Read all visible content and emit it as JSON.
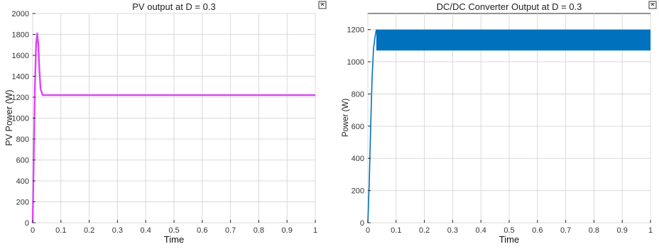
{
  "window": {
    "pin_icon_label": "⊼"
  },
  "chart_data": [
    {
      "type": "line",
      "title": "PV output at D = 0.3",
      "xlabel": "Time",
      "ylabel": "PV Power (W)",
      "xlim": [
        0,
        1
      ],
      "ylim": [
        0,
        2000
      ],
      "grid": true,
      "x_ticks": [
        0,
        0.1,
        0.2,
        0.3,
        0.4,
        0.5,
        0.6,
        0.7,
        0.8,
        0.9,
        1
      ],
      "x_tick_labels": [
        "0",
        "0.1",
        "0.2",
        "0.3",
        "0.4",
        "0.5",
        "0.6",
        "0.7",
        "0.8",
        "0.9",
        "1"
      ],
      "y_ticks": [
        0,
        200,
        400,
        600,
        800,
        1000,
        1200,
        1400,
        1600,
        1800,
        2000
      ],
      "y_tick_labels": [
        "0",
        "200",
        "400",
        "600",
        "800",
        "1000",
        "1200",
        "1400",
        "1600",
        "1800",
        "2000"
      ],
      "series": [
        {
          "color": "#e040fb",
          "x": [
            0,
            0.004,
            0.008,
            0.012,
            0.016,
            0.02,
            0.024,
            0.028,
            0.035,
            0.05,
            0.1,
            0.3,
            0.5,
            0.7,
            0.9,
            1.0
          ],
          "y": [
            0,
            650,
            1300,
            1700,
            1810,
            1700,
            1450,
            1280,
            1220,
            1220,
            1220,
            1220,
            1220,
            1220,
            1220,
            1220
          ]
        }
      ]
    },
    {
      "type": "line",
      "title": "DC/DC Converter Output at D = 0.3",
      "xlabel": "Time",
      "ylabel": "Power (W)",
      "xlim": [
        0,
        1
      ],
      "ylim": [
        0,
        1300
      ],
      "grid": true,
      "x_ticks": [
        0,
        0.1,
        0.2,
        0.3,
        0.4,
        0.5,
        0.6,
        0.7,
        0.8,
        0.9,
        1
      ],
      "x_tick_labels": [
        "0",
        "0.1",
        "0.2",
        "0.3",
        "0.4",
        "0.5",
        "0.6",
        "0.7",
        "0.8",
        "0.9",
        "1"
      ],
      "y_ticks": [
        0,
        200,
        400,
        600,
        800,
        1000,
        1200
      ],
      "y_tick_labels": [
        "0",
        "200",
        "400",
        "600",
        "800",
        "1000",
        "1200"
      ],
      "series": [
        {
          "color": "#0072bd",
          "oscillation_band": {
            "x_start": 0.03,
            "x_end": 1.0,
            "y_min": 1070,
            "y_max": 1200
          },
          "x": [
            0,
            0.005,
            0.01,
            0.015,
            0.02,
            0.025,
            0.03
          ],
          "y": [
            0,
            250,
            600,
            900,
            1080,
            1150,
            1200
          ]
        }
      ]
    }
  ]
}
